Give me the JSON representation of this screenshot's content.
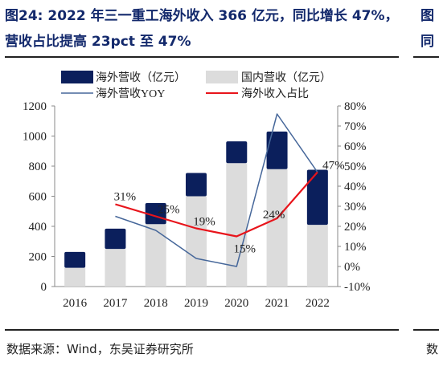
{
  "header": {
    "title": "图24:  2022 年三一重工海外收入 366 亿元，同比增长 47%，营收占比提高 23pct 至 47%",
    "right_fragment": "图\n同"
  },
  "footer": {
    "source": "数据来源：Wind，东吴证券研究所",
    "right_fragment": "数"
  },
  "colors": {
    "overseas_bar": "#0b1f5c",
    "domestic_bar": "#dcdcdc",
    "yoy_line": "#46679a",
    "share_line": "#e8141b"
  },
  "chart_data": {
    "type": "bar",
    "categories": [
      "2016",
      "2017",
      "2018",
      "2019",
      "2020",
      "2021",
      "2022"
    ],
    "series": [
      {
        "name": "海外营收（亿元）",
        "type": "bar-segment",
        "axis": "left",
        "values": [
          105,
          135,
          140,
          155,
          145,
          250,
          366
        ]
      },
      {
        "name": "国内营收（亿元）",
        "type": "bar",
        "axis": "left",
        "values": [
          125,
          250,
          415,
          600,
          820,
          780,
          410
        ]
      },
      {
        "name": "海外营收YOY",
        "type": "line",
        "axis": "right",
        "values": [
          null,
          25,
          18,
          4,
          0,
          76,
          47
        ]
      },
      {
        "name": "海外收入占比",
        "type": "line",
        "axis": "right",
        "values": [
          null,
          31,
          25,
          19,
          15,
          24,
          47
        ]
      }
    ],
    "data_labels": [
      "31%",
      "25%",
      "19%",
      "15%",
      "24%",
      "47%"
    ],
    "ylim_left": [
      0,
      1200
    ],
    "yticks_left": [
      "0",
      "200",
      "400",
      "600",
      "800",
      "1000",
      "1200"
    ],
    "ylim_right": [
      -10,
      80
    ],
    "yticks_right": [
      "-10%",
      "0%",
      "10%",
      "20%",
      "30%",
      "40%",
      "50%",
      "60%",
      "70%",
      "80%"
    ],
    "legend_position": "top",
    "grid": false
  }
}
